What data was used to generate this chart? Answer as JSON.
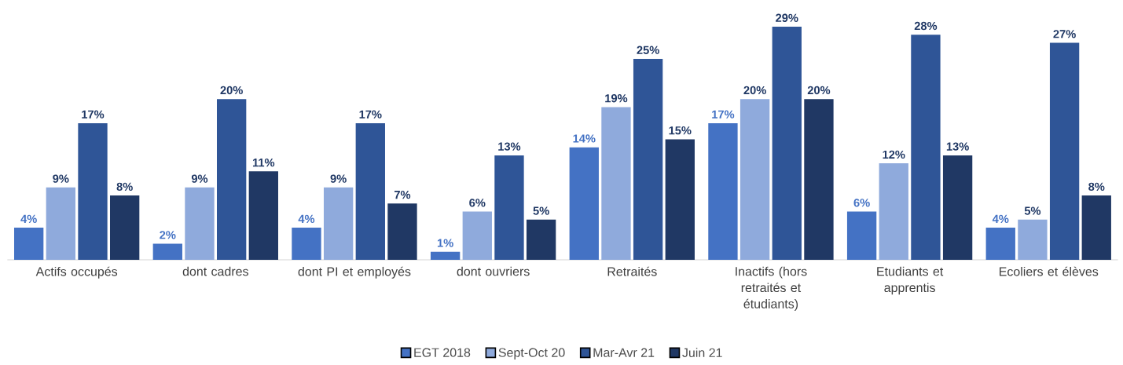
{
  "chart_data": {
    "type": "bar",
    "categories": [
      "Actifs occupés",
      "dont cadres",
      "dont PI et employés",
      "dont ouvriers",
      "Retraités",
      "Inactifs (hors retraités et étudiants)",
      "Etudiants et apprentis",
      "Ecoliers et élèves"
    ],
    "series": [
      {
        "name": "EGT 2018",
        "color": "#4472c4",
        "values": [
          4,
          2,
          4,
          1,
          14,
          17,
          6,
          4
        ],
        "value_labels": [
          "4%",
          "2%",
          "4%",
          "1%",
          "14%",
          "17%",
          "6%",
          "4%"
        ]
      },
      {
        "name": "Sept-Oct 20",
        "color": "#8faadc",
        "values": [
          9,
          9,
          9,
          6,
          19,
          20,
          12,
          5
        ],
        "value_labels": [
          "9%",
          "9%",
          "9%",
          "6%",
          "19%",
          "20%",
          "12%",
          "5%"
        ]
      },
      {
        "name": "Mar-Avr 21",
        "color": "#2f5597",
        "values": [
          17,
          20,
          17,
          13,
          25,
          29,
          28,
          27
        ],
        "value_labels": [
          "17%",
          "20%",
          "17%",
          "13%",
          "25%",
          "29%",
          "28%",
          "27%"
        ]
      },
      {
        "name": "Juin 21",
        "color": "#203864",
        "values": [
          8,
          11,
          7,
          5,
          15,
          20,
          13,
          8
        ],
        "value_labels": [
          "8%",
          "11%",
          "7%",
          "5%",
          "15%",
          "20%",
          "13%",
          "8%"
        ]
      }
    ],
    "legend": "bottom"
  }
}
